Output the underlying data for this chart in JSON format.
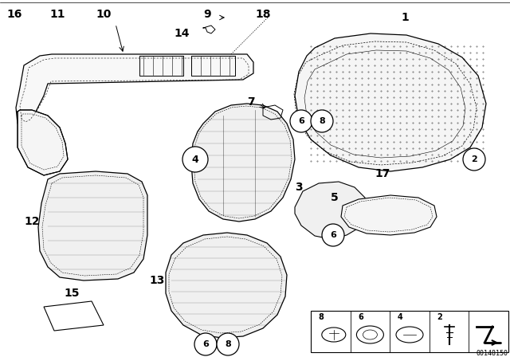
{
  "bg_color": "#ffffff",
  "catalog_num": "00148150",
  "line_color": "#000000",
  "label_fontsize": 10,
  "legend_fontsize": 8
}
